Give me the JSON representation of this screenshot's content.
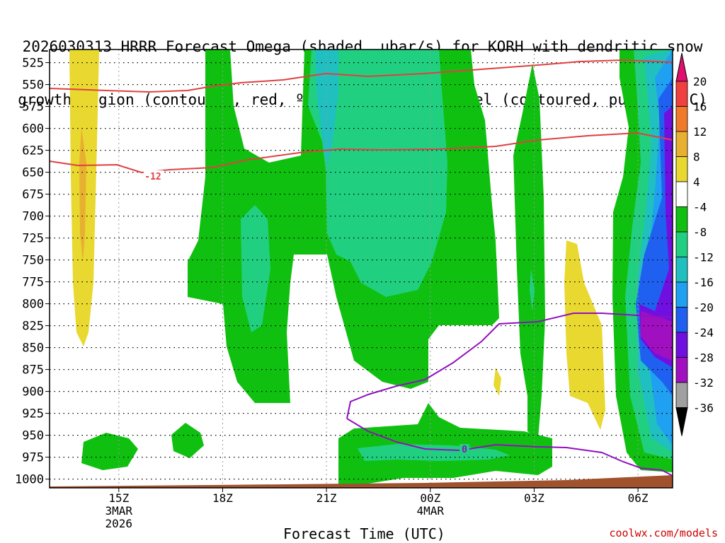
{
  "chart_data": {
    "type": "heatmap",
    "title_line1": "2026030313 HRRR Forecast Omega (shaded, µbar/s) for KORH with dendritic snow",
    "title_line2": "growth region (contoured, red, ºC) and freezing level (contoured, purple, ºC)",
    "xlabel": "Forecast Time (UTC)",
    "x_tick_labels": [
      "15Z",
      "18Z",
      "21Z",
      "00Z",
      "03Z",
      "06Z"
    ],
    "x_tick_hours": [
      15,
      18,
      21,
      24,
      27,
      30
    ],
    "x_date_labels": [
      {
        "tick": "15Z",
        "lines": [
          "3MAR",
          "2026"
        ]
      },
      {
        "tick": "00Z",
        "lines": [
          "4MAR"
        ]
      }
    ],
    "xlim_hours": [
      13,
      31
    ],
    "y_pressure_levels": [
      525,
      550,
      575,
      600,
      625,
      650,
      675,
      700,
      725,
      750,
      775,
      800,
      825,
      850,
      875,
      900,
      925,
      950,
      975,
      1000
    ],
    "ylim": [
      1010,
      510
    ],
    "grid": true,
    "colorbar": {
      "labels": [
        "20",
        "16",
        "12",
        "8",
        "4",
        "-4",
        "-8",
        "-12",
        "-16",
        "-20",
        "-24",
        "-28",
        "-32",
        "-36"
      ],
      "colors": [
        "#e0106e",
        "#f04040",
        "#f07a2a",
        "#e8b030",
        "#e8d830",
        "#ffffff",
        "#10c010",
        "#20d080",
        "#20c0c0",
        "#20a0f0",
        "#2060f0",
        "#7010e0",
        "#a010c0",
        "#a0a0a0",
        "#000000"
      ]
    },
    "contour_labels": {
      "dgz_red": "-12",
      "freezing_purple": "0"
    },
    "colors": {
      "dgz_line": "#e04040",
      "freezing_line": "#9010c0",
      "terrain": "#a0522d"
    },
    "credit": "coolwx.com/models"
  }
}
